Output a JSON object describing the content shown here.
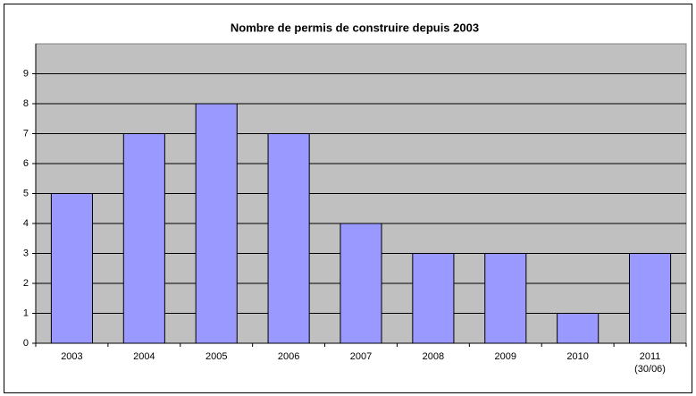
{
  "chart_data": {
    "type": "bar",
    "title": "Nombre de permis de construire depuis 2003",
    "categories": [
      "2003",
      "2004",
      "2005",
      "2006",
      "2007",
      "2008",
      "2009",
      "2010",
      "2011\n(30/06)"
    ],
    "values": [
      5,
      7,
      8,
      7,
      4,
      3,
      3,
      1,
      3
    ],
    "color": "#9999ff",
    "ylim": [
      0,
      10
    ],
    "yticks": [
      0,
      1,
      2,
      3,
      4,
      5,
      6,
      7,
      8,
      9
    ],
    "grid": true
  }
}
